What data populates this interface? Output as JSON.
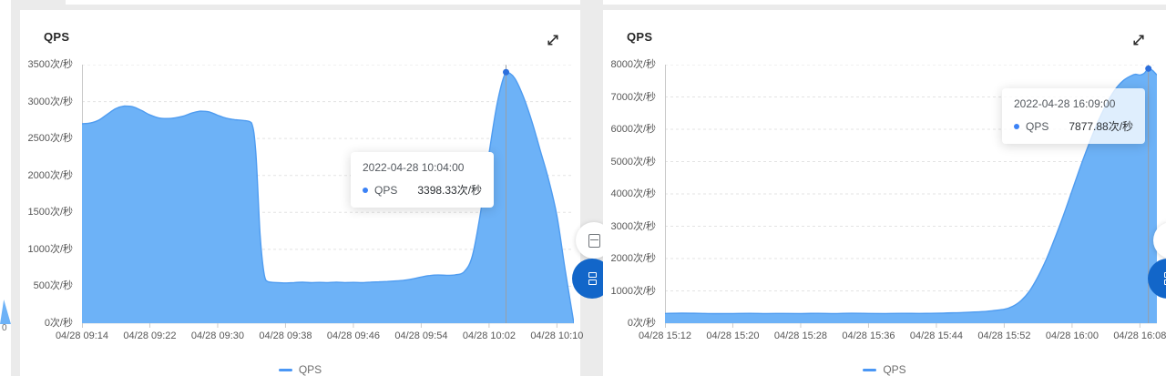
{
  "neighbor": {
    "zero_label": "0"
  },
  "chart_data": [
    {
      "type": "area",
      "title": "QPS",
      "unit": "次/秒",
      "legend": [
        "QPS"
      ],
      "x_tick_labels": [
        "04/28 09:14",
        "04/28 09:22",
        "04/28 09:30",
        "04/28 09:38",
        "04/28 09:46",
        "04/28 09:54",
        "04/28 10:02",
        "04/28 10:10"
      ],
      "x_tick_minutes": [
        0,
        8,
        16,
        24,
        32,
        40,
        48,
        56
      ],
      "x_range_minutes": [
        0,
        58
      ],
      "ylim": [
        0,
        3500
      ],
      "y_ticks": [
        0,
        500,
        1000,
        1500,
        2000,
        2500,
        3000,
        3500
      ],
      "y_tick_labels": [
        "0次/秒",
        "500次/秒",
        "1000次/秒",
        "1500次/秒",
        "2000次/秒",
        "2500次/秒",
        "3000次/秒",
        "3500次/秒"
      ],
      "grid": "dashed",
      "legend_position": "bottom-center",
      "series": [
        {
          "name": "QPS",
          "points": [
            [
              0,
              2700
            ],
            [
              1,
              2710
            ],
            [
              2,
              2750
            ],
            [
              3,
              2830
            ],
            [
              4,
              2905
            ],
            [
              5,
              2940
            ],
            [
              6,
              2930
            ],
            [
              7,
              2880
            ],
            [
              8,
              2820
            ],
            [
              9,
              2780
            ],
            [
              10,
              2770
            ],
            [
              11,
              2780
            ],
            [
              12,
              2805
            ],
            [
              13,
              2845
            ],
            [
              14,
              2870
            ],
            [
              15,
              2860
            ],
            [
              16,
              2815
            ],
            [
              17,
              2775
            ],
            [
              18,
              2755
            ],
            [
              19,
              2745
            ],
            [
              20,
              2710
            ],
            [
              20.5,
              2300
            ],
            [
              21,
              1200
            ],
            [
              21.5,
              650
            ],
            [
              22,
              560
            ],
            [
              23,
              550
            ],
            [
              24,
              545
            ],
            [
              25,
              550
            ],
            [
              26,
              555
            ],
            [
              27,
              548
            ],
            [
              28,
              552
            ],
            [
              29,
              550
            ],
            [
              30,
              556
            ],
            [
              31,
              550
            ],
            [
              32,
              552
            ],
            [
              33,
              548
            ],
            [
              34,
              556
            ],
            [
              35,
              560
            ],
            [
              36,
              565
            ],
            [
              37,
              572
            ],
            [
              38,
              582
            ],
            [
              39,
              600
            ],
            [
              40,
              625
            ],
            [
              41,
              645
            ],
            [
              42,
              652
            ],
            [
              43,
              648
            ],
            [
              44,
              655
            ],
            [
              45,
              690
            ],
            [
              46,
              900
            ],
            [
              47,
              1500
            ],
            [
              48,
              2300
            ],
            [
              49,
              3000
            ],
            [
              50,
              3398.33
            ],
            [
              51,
              3320
            ],
            [
              52,
              3080
            ],
            [
              53,
              2750
            ],
            [
              54,
              2350
            ],
            [
              55,
              1950
            ],
            [
              56,
              1450
            ],
            [
              57,
              700
            ],
            [
              58,
              0
            ]
          ]
        }
      ],
      "highlight": {
        "x_minute": 50,
        "value": 3398.33,
        "tooltip": {
          "date": "2022-04-28 10:04:00",
          "name": "QPS",
          "value": "3398.33次/秒"
        }
      },
      "colors": {
        "area": "#6db2f7",
        "line": "#4f9cf0",
        "marker": "#2c6fdd",
        "legend": "#4a97f5",
        "tooltip_dot": "#3b82f6"
      }
    },
    {
      "type": "area",
      "title": "QPS",
      "unit": "次/秒",
      "legend": [
        "QPS"
      ],
      "x_tick_labels": [
        "04/28 15:12",
        "04/28 15:20",
        "04/28 15:28",
        "04/28 15:36",
        "04/28 15:44",
        "04/28 15:52",
        "04/28 16:00",
        "04/28 16:08"
      ],
      "x_tick_minutes": [
        0,
        8,
        16,
        24,
        32,
        40,
        48,
        56
      ],
      "x_range_minutes": [
        0,
        58
      ],
      "ylim": [
        0,
        8000
      ],
      "y_ticks": [
        0,
        1000,
        2000,
        3000,
        4000,
        5000,
        6000,
        7000,
        8000
      ],
      "y_tick_labels": [
        "0次/秒",
        "1000次/秒",
        "2000次/秒",
        "3000次/秒",
        "4000次/秒",
        "5000次/秒",
        "6000次/秒",
        "7000次/秒",
        "8000次/秒"
      ],
      "grid": "dashed",
      "legend_position": "bottom-center",
      "series": [
        {
          "name": "QPS",
          "points": [
            [
              0,
              300
            ],
            [
              2,
              310
            ],
            [
              4,
              305
            ],
            [
              6,
              295
            ],
            [
              8,
              300
            ],
            [
              10,
              305
            ],
            [
              12,
              298
            ],
            [
              14,
              302
            ],
            [
              16,
              300
            ],
            [
              18,
              305
            ],
            [
              20,
              300
            ],
            [
              22,
              308
            ],
            [
              24,
              302
            ],
            [
              26,
              300
            ],
            [
              28,
              305
            ],
            [
              30,
              302
            ],
            [
              32,
              308
            ],
            [
              34,
              320
            ],
            [
              36,
              340
            ],
            [
              38,
              370
            ],
            [
              40,
              430
            ],
            [
              41,
              520
            ],
            [
              42,
              700
            ],
            [
              43,
              1000
            ],
            [
              44,
              1450
            ],
            [
              45,
              2000
            ],
            [
              46,
              2650
            ],
            [
              47,
              3350
            ],
            [
              48,
              4100
            ],
            [
              49,
              4850
            ],
            [
              50,
              5550
            ],
            [
              51,
              6200
            ],
            [
              52,
              6750
            ],
            [
              53,
              7200
            ],
            [
              54,
              7500
            ],
            [
              55,
              7660
            ],
            [
              55.5,
              7700
            ],
            [
              56,
              7680
            ],
            [
              56.5,
              7730
            ],
            [
              57,
              7877.88
            ],
            [
              57.5,
              7820
            ],
            [
              58,
              7680
            ]
          ]
        }
      ],
      "highlight": {
        "x_minute": 57,
        "value": 7877.88,
        "tooltip": {
          "date": "2022-04-28 16:09:00",
          "name": "QPS",
          "value": "7877.88次/秒"
        }
      },
      "colors": {
        "area": "#6db2f7",
        "line": "#4f9cf0",
        "marker": "#2c6fdd",
        "legend": "#4a97f5",
        "tooltip_dot": "#3b82f6"
      }
    }
  ]
}
